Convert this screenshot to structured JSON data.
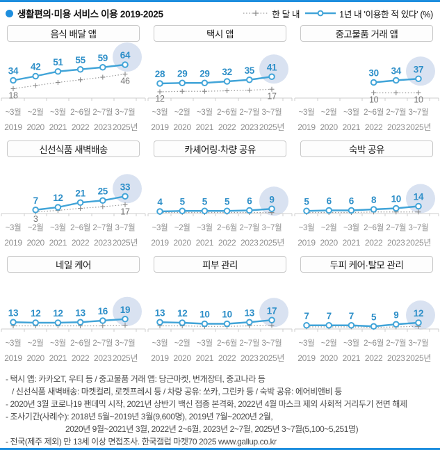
{
  "header": {
    "title": "생활편의·미용 서비스 이용 2019-2025",
    "legend": {
      "dotted_label": "한 달 내",
      "solid_label": "1년 내 '이용한 적 있다' (%)"
    }
  },
  "axis": {
    "months": [
      "~3월",
      "~2월",
      "~3월",
      "2~6월",
      "2~7월",
      "3~7월"
    ],
    "years": [
      "2019",
      "2020",
      "2021",
      "2022",
      "2023",
      "2025년"
    ]
  },
  "colors": {
    "accent": "#1e8ede",
    "line": "#41a4d8",
    "value": "#2e8fc8",
    "highlight": "#d9e2f1",
    "dotted": "#9a9a9a",
    "dotted_marker": "#8a8a8a",
    "dotted_label": "#757575",
    "axis": "#cccccc",
    "xlabel": "#8f8f8f"
  },
  "chart_data": [
    {
      "type": "line",
      "title": "음식 배달 앱",
      "categories": [
        "2019",
        "2020",
        "2021",
        "2022",
        "2023",
        "2025"
      ],
      "series": [
        {
          "name": "1년 내",
          "start": 0,
          "values": [
            34,
            42,
            51,
            55,
            59,
            64
          ],
          "labels": [
            "34",
            "42",
            "51",
            "55",
            "59",
            "64"
          ]
        },
        {
          "name": "한 달 내",
          "start": 0,
          "values": [
            18,
            24,
            30,
            35,
            40,
            46
          ],
          "labels": [
            "18",
            null,
            null,
            null,
            null,
            "46"
          ]
        }
      ]
    },
    {
      "type": "line",
      "title": "택시 앱",
      "categories": [
        "2019",
        "2020",
        "2021",
        "2022",
        "2023",
        "2025"
      ],
      "series": [
        {
          "name": "1년 내",
          "start": 0,
          "values": [
            28,
            29,
            29,
            32,
            35,
            41
          ],
          "labels": [
            "28",
            "29",
            "29",
            "32",
            "35",
            "41"
          ]
        },
        {
          "name": "한 달 내",
          "start": 0,
          "values": [
            12,
            13,
            13,
            14,
            15,
            17
          ],
          "labels": [
            "12",
            null,
            null,
            null,
            null,
            "17"
          ]
        }
      ]
    },
    {
      "type": "line",
      "title": "중고물품 거래 앱",
      "categories": [
        "2022",
        "2023",
        "2025"
      ],
      "series": [
        {
          "name": "1년 내",
          "start": 3,
          "values": [
            30,
            34,
            37
          ],
          "labels": [
            "30",
            "34",
            "37"
          ]
        },
        {
          "name": "한 달 내",
          "start": 3,
          "values": [
            10,
            10,
            10
          ],
          "labels": [
            "10",
            null,
            "10"
          ]
        }
      ]
    },
    {
      "type": "line",
      "title": "신선식품 새벽배송",
      "categories": [
        "2020",
        "2021",
        "2022",
        "2023",
        "2025"
      ],
      "series": [
        {
          "name": "1년 내",
          "start": 1,
          "values": [
            7,
            12,
            21,
            25,
            33
          ],
          "labels": [
            "7",
            "12",
            "21",
            "25",
            "33"
          ]
        },
        {
          "name": "한 달 내",
          "start": 1,
          "values": [
            3,
            6,
            10,
            13,
            17
          ],
          "labels": [
            "3",
            null,
            null,
            null,
            "17"
          ]
        }
      ]
    },
    {
      "type": "line",
      "title": "카셰어링·차량 공유",
      "categories": [
        "2019",
        "2020",
        "2021",
        "2022",
        "2023",
        "2025"
      ],
      "series": [
        {
          "name": "1년 내",
          "start": 0,
          "values": [
            4,
            5,
            5,
            5,
            6,
            9
          ],
          "labels": [
            "4",
            "5",
            "5",
            "5",
            "6",
            "9"
          ]
        },
        {
          "name": "한 달 내",
          "start": 0,
          "values": [
            2,
            2,
            2,
            2,
            2,
            2
          ],
          "labels": [
            null,
            null,
            null,
            null,
            null,
            null
          ]
        }
      ]
    },
    {
      "type": "line",
      "title": "숙박 공유",
      "categories": [
        "2019",
        "2020",
        "2021",
        "2022",
        "2023",
        "2025"
      ],
      "series": [
        {
          "name": "1년 내",
          "start": 0,
          "values": [
            5,
            6,
            6,
            8,
            10,
            14
          ],
          "labels": [
            "5",
            "6",
            "6",
            "8",
            "10",
            "14"
          ]
        },
        {
          "name": "한 달 내",
          "start": 0,
          "values": [
            2,
            2,
            2,
            3,
            3,
            3
          ],
          "labels": [
            null,
            null,
            null,
            null,
            null,
            null
          ]
        }
      ]
    },
    {
      "type": "line",
      "title": "네일 케어",
      "categories": [
        "2019",
        "2020",
        "2021",
        "2022",
        "2023",
        "2025"
      ],
      "series": [
        {
          "name": "1년 내",
          "start": 0,
          "values": [
            13,
            12,
            12,
            13,
            16,
            19
          ],
          "labels": [
            "13",
            "12",
            "12",
            "13",
            "16",
            "19"
          ]
        },
        {
          "name": "한 달 내",
          "start": 0,
          "values": [
            6,
            6,
            6,
            6,
            6,
            7
          ],
          "labels": [
            null,
            null,
            null,
            null,
            null,
            null
          ]
        }
      ]
    },
    {
      "type": "line",
      "title": "피부 관리",
      "categories": [
        "2019",
        "2020",
        "2021",
        "2022",
        "2023",
        "2025"
      ],
      "series": [
        {
          "name": "1년 내",
          "start": 0,
          "values": [
            13,
            12,
            10,
            10,
            13,
            17
          ],
          "labels": [
            "13",
            "12",
            "10",
            "10",
            "13",
            "17"
          ]
        },
        {
          "name": "한 달 내",
          "start": 0,
          "values": [
            6,
            6,
            5,
            5,
            6,
            7
          ],
          "labels": [
            null,
            null,
            null,
            null,
            null,
            null
          ]
        }
      ]
    },
    {
      "type": "line",
      "title": "두피 케어·탈모 관리",
      "categories": [
        "2019",
        "2020",
        "2021",
        "2022",
        "2023",
        "2025"
      ],
      "series": [
        {
          "name": "1년 내",
          "start": 0,
          "values": [
            7,
            7,
            7,
            5,
            9,
            12
          ],
          "labels": [
            "7",
            "7",
            "7",
            "5",
            "9",
            "12"
          ]
        },
        {
          "name": "한 달 내",
          "start": 0,
          "values": [
            4,
            4,
            4,
            3,
            4,
            5
          ],
          "labels": [
            null,
            null,
            null,
            null,
            null,
            null
          ]
        }
      ]
    }
  ],
  "footnotes": [
    {
      "text": "- 택시 앱: 카카오T, 우티 등 / 중고물품 거래 앱: 당근마켓, 번개장터, 중고나라 등",
      "indent": 0
    },
    {
      "text": "/ 신선식품 새벽배송: 마켓컬리, 로켓프레시 등 / 차량 공유: 쏘카, 그린카 등 / 숙박 공유: 에어비앤비 등",
      "indent": 9
    },
    {
      "text": "- 2020년 3월 코로나19 팬데믹 시작, 2021년 상반기 백신 접종 본격화, 2022년 4월 마스크 제외 사회적 거리두기 전면 해제",
      "indent": 0
    },
    {
      "text": "- 조사기간(사례수):  2018년 5월~2019년 3월(9,600명), 2019년 7월~2020년 2월,",
      "indent": 0
    },
    {
      "text": "2020년 9월~2021년 3월, 2022년 2~6월, 2023년 2~7월, 2025년 3~7월(5,100~5,251명)",
      "indent": 86
    },
    {
      "text": "- 전국(제주 제외) 만 13세 이상 면접조사. 한국갤럽 마켓70 2025 www.gallup.co.kr",
      "indent": 0
    }
  ]
}
